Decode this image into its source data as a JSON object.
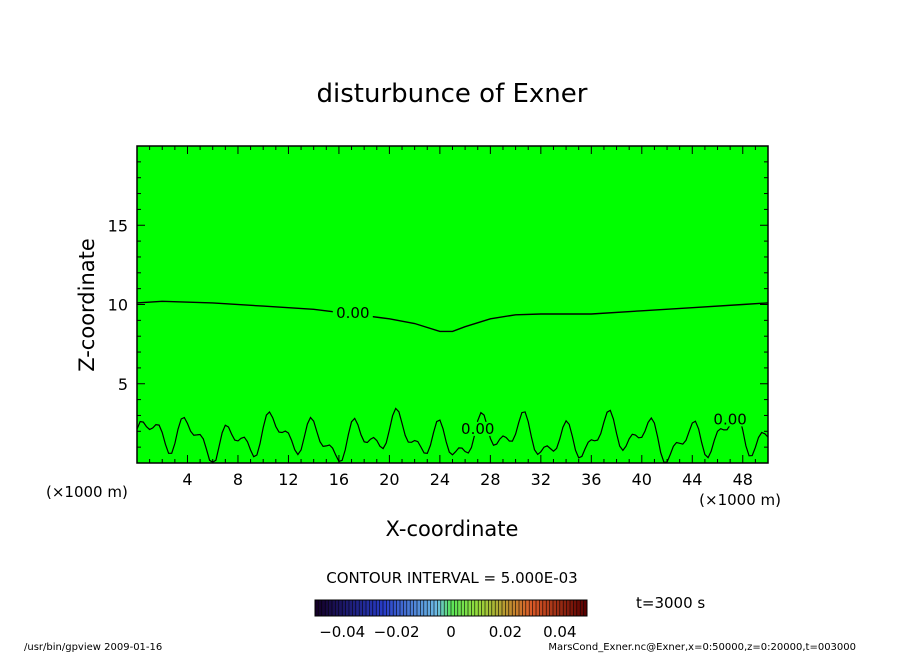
{
  "chart_data": {
    "type": "contour",
    "title": "disturbunce of Exner",
    "xlabel": "X-coordinate",
    "ylabel": "Z-coordinate",
    "x_unit_left": "(×1000 m)",
    "x_unit_right": "(×1000 m)",
    "xlim": [
      0,
      50
    ],
    "ylim": [
      0,
      20
    ],
    "x_ticks": [
      4,
      8,
      12,
      16,
      20,
      24,
      28,
      32,
      36,
      40,
      44,
      48
    ],
    "y_ticks": [
      5,
      10,
      15
    ],
    "fill_color": "#00ff00",
    "contour_interval_text": "CONTOUR INTERVAL = 5.000E-03",
    "time_text": "t=3000 s",
    "colorbar_ticks": [
      "−0.04",
      "−0.02",
      "0",
      "0.02",
      "0.04"
    ],
    "colorbar_range": [
      -0.05,
      0.05
    ],
    "contours": [
      {
        "label": "0.00",
        "points": [
          [
            0,
            10.1
          ],
          [
            2,
            10.2
          ],
          [
            6,
            10.1
          ],
          [
            10,
            9.9
          ],
          [
            14,
            9.7
          ],
          [
            16,
            9.5
          ],
          [
            18,
            9.3
          ],
          [
            20,
            9.1
          ],
          [
            22,
            8.8
          ],
          [
            24,
            8.3
          ],
          [
            25,
            8.3
          ],
          [
            26,
            8.6
          ],
          [
            28,
            9.1
          ],
          [
            30,
            9.35
          ],
          [
            32,
            9.4
          ],
          [
            36,
            9.4
          ],
          [
            40,
            9.6
          ],
          [
            44,
            9.8
          ],
          [
            48,
            10.0
          ],
          [
            50,
            10.1
          ]
        ]
      }
    ],
    "contour_labels": [
      {
        "text": "0.00",
        "x": 17.1,
        "y": 9.2
      },
      {
        "text": "0.00",
        "x": 27.0,
        "y": 1.9
      },
      {
        "text": "0.00",
        "x": 47.0,
        "y": 2.5
      }
    ]
  },
  "footer": {
    "left": "/usr/bin/gpview   2009-01-16",
    "right": "MarsCond_Exner.nc@Exner,x=0:50000,z=0:20000,t=003000"
  }
}
